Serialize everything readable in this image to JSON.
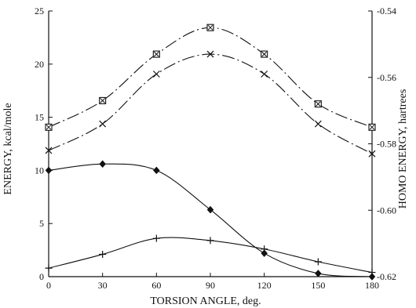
{
  "chart_data": {
    "type": "line",
    "title": "",
    "xlabel": "TORSION ANGLE, deg.",
    "ylabel_left": "ENERGY, kcal/mole",
    "ylabel_right": "HOMO ENERGY, hartrees",
    "x_ticks": [
      0,
      30,
      60,
      90,
      120,
      150,
      180
    ],
    "x_tick_labels": [
      "0",
      "30",
      "60",
      "90",
      "120",
      "150",
      "180"
    ],
    "xlim": [
      0,
      180
    ],
    "y_left_ticks": [
      0,
      5,
      10,
      15,
      20,
      25
    ],
    "y_left_tick_labels": [
      "0",
      "5",
      "10",
      "15",
      "20",
      "25"
    ],
    "ylim_left": [
      0,
      25
    ],
    "y_right_ticks": [
      -0.62,
      -0.6,
      -0.58,
      -0.56,
      -0.54
    ],
    "y_right_tick_labels": [
      "-0.62",
      "-0.60",
      "-0.58",
      "-0.56",
      "-0.54"
    ],
    "ylim_right": [
      -0.62,
      -0.54
    ],
    "grid": false,
    "legend": "none",
    "series": [
      {
        "axis": "right",
        "marker": "boxed-x",
        "line_style": "long-dash",
        "x": [
          0,
          30,
          60,
          90,
          120,
          150,
          180
        ],
        "y": [
          -0.575,
          -0.567,
          -0.553,
          -0.545,
          -0.553,
          -0.568,
          -0.575
        ]
      },
      {
        "axis": "right",
        "marker": "x",
        "line_style": "long-dash",
        "x": [
          0,
          30,
          60,
          90,
          120,
          150,
          180
        ],
        "y": [
          -0.582,
          -0.574,
          -0.559,
          -0.553,
          -0.559,
          -0.574,
          -0.583
        ]
      },
      {
        "axis": "left",
        "marker": "diamond",
        "line_style": "solid",
        "x": [
          0,
          30,
          60,
          90,
          120,
          150,
          180
        ],
        "y": [
          10.0,
          10.6,
          10.0,
          6.3,
          2.2,
          0.3,
          0.0
        ]
      },
      {
        "axis": "left",
        "marker": "plus",
        "line_style": "solid",
        "x": [
          0,
          30,
          60,
          90,
          120,
          150,
          180
        ],
        "y": [
          0.8,
          2.1,
          3.6,
          3.4,
          2.6,
          1.4,
          0.4
        ]
      }
    ],
    "colors": {
      "ink": "#111111",
      "background": "#ffffff"
    }
  }
}
